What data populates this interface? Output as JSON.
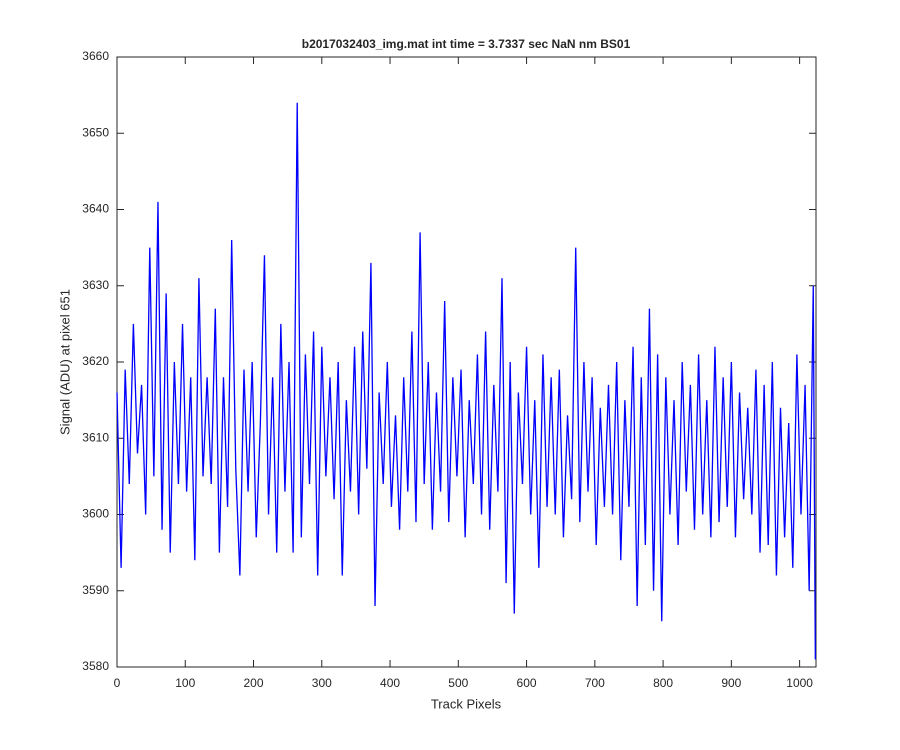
{
  "chart_data": {
    "type": "line",
    "title": "b2017032403_img.mat int time = 3.7337 sec  NaN nm BS01",
    "x_label": "Track Pixels",
    "y_label": "Signal (ADU) at pixel 651",
    "xlim": [
      0,
      1024
    ],
    "xticks": [
      0,
      100,
      200,
      300,
      400,
      500,
      600,
      700,
      800,
      900,
      1000
    ],
    "ylim": [
      3580,
      3660
    ],
    "yticks": [
      3580,
      3590,
      3600,
      3610,
      3620,
      3630,
      3640,
      3650,
      3660
    ],
    "grid": false,
    "x": [
      0,
      6,
      12,
      18,
      24,
      30,
      36,
      42,
      48,
      54,
      60,
      66,
      72,
      78,
      84,
      90,
      96,
      102,
      108,
      114,
      120,
      126,
      132,
      138,
      144,
      150,
      156,
      162,
      168,
      174,
      180,
      186,
      192,
      198,
      204,
      210,
      216,
      222,
      228,
      234,
      240,
      246,
      252,
      258,
      264,
      270,
      276,
      282,
      288,
      294,
      300,
      306,
      312,
      318,
      324,
      330,
      336,
      342,
      348,
      354,
      360,
      366,
      372,
      378,
      384,
      390,
      396,
      402,
      408,
      414,
      420,
      426,
      432,
      438,
      444,
      450,
      456,
      462,
      468,
      474,
      480,
      486,
      492,
      498,
      504,
      510,
      516,
      522,
      528,
      534,
      540,
      546,
      552,
      558,
      564,
      570,
      576,
      582,
      588,
      594,
      600,
      606,
      612,
      618,
      624,
      630,
      636,
      642,
      648,
      654,
      660,
      666,
      672,
      678,
      684,
      690,
      696,
      702,
      708,
      714,
      720,
      726,
      732,
      738,
      744,
      750,
      756,
      762,
      768,
      774,
      780,
      786,
      792,
      798,
      804,
      810,
      816,
      822,
      828,
      834,
      840,
      846,
      852,
      858,
      864,
      870,
      876,
      882,
      888,
      894,
      900,
      906,
      912,
      918,
      924,
      930,
      936,
      942,
      948,
      954,
      960,
      966,
      972,
      978,
      984,
      990,
      996,
      1002,
      1008,
      1014,
      1020,
      1023
    ],
    "series": [
      {
        "name": "signal",
        "color": "#0000ff",
        "values": [
          3616,
          3593,
          3619,
          3604,
          3625,
          3608,
          3617,
          3600,
          3635,
          3605,
          3641,
          3598,
          3629,
          3595,
          3620,
          3604,
          3625,
          3603,
          3618,
          3594,
          3631,
          3605,
          3618,
          3604,
          3627,
          3595,
          3618,
          3601,
          3636,
          3606,
          3592,
          3619,
          3603,
          3620,
          3597,
          3612,
          3634,
          3600,
          3618,
          3595,
          3625,
          3603,
          3620,
          3595,
          3654,
          3597,
          3621,
          3604,
          3624,
          3592,
          3622,
          3605,
          3618,
          3602,
          3620,
          3592,
          3615,
          3603,
          3622,
          3600,
          3624,
          3606,
          3633,
          3588,
          3616,
          3604,
          3620,
          3601,
          3613,
          3598,
          3618,
          3603,
          3624,
          3599,
          3637,
          3604,
          3620,
          3598,
          3616,
          3603,
          3628,
          3599,
          3618,
          3605,
          3619,
          3597,
          3615,
          3604,
          3621,
          3600,
          3624,
          3598,
          3617,
          3603,
          3631,
          3591,
          3620,
          3587,
          3616,
          3604,
          3622,
          3600,
          3615,
          3593,
          3621,
          3601,
          3618,
          3600,
          3619,
          3597,
          3613,
          3602,
          3635,
          3599,
          3620,
          3603,
          3618,
          3596,
          3614,
          3601,
          3617,
          3600,
          3620,
          3594,
          3615,
          3601,
          3622,
          3588,
          3618,
          3596,
          3627,
          3590,
          3621,
          3586,
          3618,
          3600,
          3615,
          3596,
          3620,
          3603,
          3617,
          3598,
          3621,
          3600,
          3615,
          3597,
          3622,
          3599,
          3618,
          3601,
          3620,
          3597,
          3616,
          3602,
          3614,
          3600,
          3619,
          3595,
          3617,
          3596,
          3620,
          3592,
          3614,
          3597,
          3612,
          3593,
          3621,
          3600,
          3617,
          3590,
          3630,
          3581
        ]
      }
    ]
  }
}
